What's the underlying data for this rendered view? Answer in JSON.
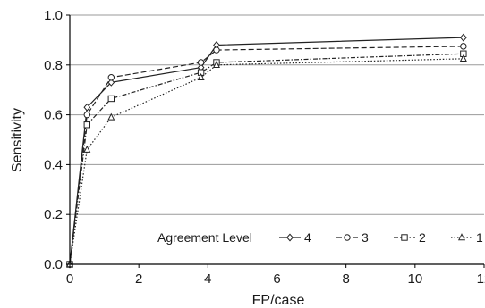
{
  "chart_data": {
    "type": "line",
    "title": "",
    "xlabel": "FP/case",
    "ylabel": "Sensitivity",
    "xlim": [
      0,
      12
    ],
    "ylim": [
      0,
      1.0
    ],
    "xticks": [
      "0",
      "2",
      "4",
      "6",
      "8",
      "10",
      "12"
    ],
    "yticks": [
      "0.0",
      "0.2",
      "0.4",
      "0.6",
      "0.8",
      "1.0"
    ],
    "grid": "horizontal",
    "legend": {
      "title": "Agreement Level",
      "placement": "bottom-right"
    },
    "series": [
      {
        "name": "4",
        "marker": "diamond",
        "dash": "solid",
        "x": [
          0,
          0.5,
          1.2,
          3.8,
          4.25,
          11.4
        ],
        "y": [
          0.0,
          0.63,
          0.73,
          0.79,
          0.88,
          0.91
        ]
      },
      {
        "name": "3",
        "marker": "circle",
        "dash": "dashed",
        "x": [
          0,
          0.5,
          1.2,
          3.8,
          4.25,
          11.4
        ],
        "y": [
          0.0,
          0.6,
          0.75,
          0.81,
          0.86,
          0.875
        ]
      },
      {
        "name": "2",
        "marker": "square",
        "dash": "dashdot",
        "x": [
          0,
          0.5,
          1.2,
          3.8,
          4.25,
          11.4
        ],
        "y": [
          0.0,
          0.56,
          0.665,
          0.77,
          0.81,
          0.845
        ]
      },
      {
        "name": "1",
        "marker": "triangle",
        "dash": "dotted",
        "x": [
          0,
          0.5,
          1.2,
          3.8,
          4.25,
          11.4
        ],
        "y": [
          0.0,
          0.46,
          0.59,
          0.75,
          0.8,
          0.825
        ]
      }
    ]
  }
}
